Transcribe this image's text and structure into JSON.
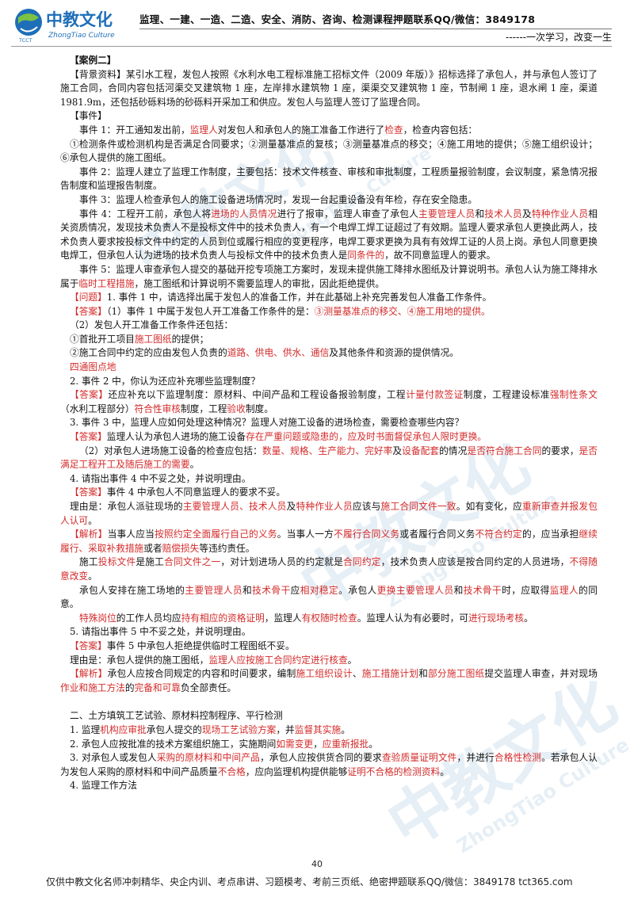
{
  "header": {
    "logo_text": "中教文化",
    "logo_sub": "ZhongTiao Culture",
    "logo_badge": "TCCT",
    "line1": "监理、一建、一造、二造、安全、消防、咨询、检测课程押题联系QQ/微信：3849178",
    "line2": "------一次学习，改变一生"
  },
  "watermarks": {
    "brand": "中教文化",
    "sub": "ZhongTiao Culture"
  },
  "body": [
    {
      "text": "【案例二】",
      "cls": "b ind"
    },
    {
      "text": "【背景资料】某引水工程，发包人按照《水利水电工程标准施工招标文件（2009 年版）》招标选择了承包人，并与承包人签订了施工合同，合同内容包括河渠交叉建筑物 1 座，左岸排水建筑物 1 座，渠渠交叉建筑物 1 座，节制闸 1 座，退水闸 1 座，渠道 1981.9m，还包括砂砾料场的砂砾料开采加工和供应。发包人与监理人签订了监理合同。",
      "cls": "ind"
    },
    {
      "text": "【事件】",
      "cls": "ind"
    },
    {
      "parts": [
        {
          "t": "事件 1：开工通知发出前，"
        },
        {
          "t": "监理人",
          "r": 1
        },
        {
          "t": "对发包人和承包人的施工准备工作进行了"
        },
        {
          "t": "检查",
          "r": 1
        },
        {
          "t": "，检查内容包括："
        }
      ],
      "cls": "ind2"
    },
    {
      "text": "①检测条件或检测机构是否满足合同要求；②测量基准点的复核；③测量基准点的移交；④施工用地的提供；⑤施工组织设计；⑥承包人提供的施工图纸。",
      "cls": "ind"
    },
    {
      "text": "事件 2：监理人建立了监理工作制度，主要包括：技术文件核查、审核和审批制度，工程质量报验制度，会议制度，紧急情况报告制度和监理报告制度。",
      "cls": "ind2"
    },
    {
      "text": "事件 3：监理人检查承包人的施工设备进场情况时，发现一台起重设备没有年检，存在安全隐患。",
      "cls": "ind2"
    },
    {
      "parts": [
        {
          "t": "事件 4：工程开工前，承包人将"
        },
        {
          "t": "进场的人员情况",
          "r": 1
        },
        {
          "t": "进行了报审，监理人审查了承包人"
        },
        {
          "t": "主要管理人员",
          "r": 1
        },
        {
          "t": "和"
        },
        {
          "t": "技术人员",
          "r": 1
        },
        {
          "t": "及"
        },
        {
          "t": "特种作业人员",
          "r": 1
        },
        {
          "t": "相关资质情况，发现技术负责人不是投标文件中的技术负责人，有一个电焊工焊工证超过了有效期。监理人要求承包人更换此两人，技术负责人要求按投标文件中约定的人员到位或履行相应的变更程序，电焊工要求更换为具有有效焊工证的人员上岗。承包人同意更换电焊工，但承包人认为进场的技术负责人与投标文件中的技术负责人是"
        },
        {
          "t": "同条件的",
          "r": 1
        },
        {
          "t": "，故不同意监理人的要求。"
        }
      ],
      "cls": "ind2"
    },
    {
      "parts": [
        {
          "t": "事件 5：监理人审查承包人提交的基础开挖专项施工方案时，发现未提供施工降排水图纸及计算说明书。承包人认为施工降排水属于"
        },
        {
          "t": "临时工程措施",
          "r": 1
        },
        {
          "t": "，施工图纸和计算说明不需要监理人的审批，因此拒绝提供。"
        }
      ],
      "cls": "ind2"
    },
    {
      "parts": [
        {
          "t": "【问题】",
          "r": 1
        },
        {
          "t": "1. 事件 1 中，请选择出属于发包人的准备工作，并在此基础上补充完善发包人准备工作条件。"
        }
      ],
      "cls": "ind"
    },
    {
      "parts": [
        {
          "t": "【答案】",
          "r": 1
        },
        {
          "t": "（1）事件 1 中属于发包人开工准备工作条件的是："
        },
        {
          "t": "③测量基准点的移交、④施工用地的提供。",
          "r": 1
        }
      ],
      "cls": "ind"
    },
    {
      "text": "（2）发包人开工准备工作条件还包括：",
      "cls": "ind"
    },
    {
      "parts": [
        {
          "t": "①首批开工项目"
        },
        {
          "t": "施工图纸",
          "r": 1
        },
        {
          "t": "的提供；"
        }
      ],
      "cls": "ind"
    },
    {
      "parts": [
        {
          "t": "②施工合同中约定的应由发包人负责的"
        },
        {
          "t": "道路、供电、供水、通信",
          "r": 1
        },
        {
          "t": "及其他条件和资源的提供情况。"
        }
      ],
      "cls": "ind"
    },
    {
      "parts": [
        {
          "t": "四通图点地",
          "r": 1
        }
      ],
      "cls": "ind"
    },
    {
      "text": "2. 事件 2 中，你认为还应补充哪些监理制度？",
      "cls": "ind"
    },
    {
      "parts": [
        {
          "t": "【答案】",
          "r": 1
        },
        {
          "t": "还应补充以下监理制度：原材料、中间产品和工程设备报验制度，工程"
        },
        {
          "t": "计量付款签证",
          "r": 1
        },
        {
          "t": "制度，工程建设标准"
        },
        {
          "t": "强制性条文",
          "r": 1
        },
        {
          "t": "（水利工程部分）"
        },
        {
          "t": "符合性审核",
          "r": 1
        },
        {
          "t": "制度，工程"
        },
        {
          "t": "验收",
          "r": 1
        },
        {
          "t": "制度。"
        }
      ],
      "cls": "ind"
    },
    {
      "text": "3. 事件 3 中，监理人应如何处理这种情况？监理人对施工设备的进场检查，需要检查哪些内容？",
      "cls": "ind"
    },
    {
      "parts": [
        {
          "t": "【答案】",
          "r": 1
        },
        {
          "t": "监理人认为承包人进场的施工设备"
        },
        {
          "t": "存在严重问题或隐患的",
          "r": 1
        },
        {
          "t": "，应及时书面督促承包人限时更换。",
          "r": 1
        }
      ],
      "cls": "ind"
    },
    {
      "parts": [
        {
          "t": "（2）对承包人进场施工设备的检查应包括："
        },
        {
          "t": "数量、规格、生产能力、完好率",
          "r": 1
        },
        {
          "t": "及"
        },
        {
          "t": "设备配套",
          "r": 1
        },
        {
          "t": "的情况"
        },
        {
          "t": "是否符合施工合同",
          "r": 1
        },
        {
          "t": "的要求，"
        },
        {
          "t": "是否满足工程开工及随后施工的需要",
          "r": 1
        },
        {
          "t": "。"
        }
      ],
      "cls": "ind2"
    },
    {
      "text": "4. 请指出事件 4 中不妥之处，并说明理由。",
      "cls": "ind"
    },
    {
      "parts": [
        {
          "t": "【答案】",
          "r": 1
        },
        {
          "t": "事件 4 中承包人不同意监理人的要求不妥。"
        }
      ],
      "cls": "ind"
    },
    {
      "parts": [
        {
          "t": "理由是：承包人派驻现场的"
        },
        {
          "t": "主要管理人员、技术人员",
          "r": 1
        },
        {
          "t": "及"
        },
        {
          "t": "特种作业人员",
          "r": 1
        },
        {
          "t": "应该与"
        },
        {
          "t": "施工合同文件一致",
          "r": 1
        },
        {
          "t": "。如有变化，应"
        },
        {
          "t": "重新审查并报发包人认可",
          "r": 1
        },
        {
          "t": "。"
        }
      ],
      "cls": "ind"
    },
    {
      "parts": [
        {
          "t": "【解析】",
          "r": 1
        },
        {
          "t": "当事人应当"
        },
        {
          "t": "按照约定全面履行自己的义务",
          "r": 1
        },
        {
          "t": "。当事人一方"
        },
        {
          "t": "不履行合同义务",
          "r": 1
        },
        {
          "t": "或者履行合同义务"
        },
        {
          "t": "不符合约定",
          "r": 1
        },
        {
          "t": "的，应当承担"
        },
        {
          "t": "继续履行、采取补救措施",
          "r": 1
        },
        {
          "t": "或者"
        },
        {
          "t": "赔偿损失",
          "r": 1
        },
        {
          "t": "等违约责任。"
        }
      ],
      "cls": "ind"
    },
    {
      "parts": [
        {
          "t": "施工"
        },
        {
          "t": "投标文件",
          "r": 1
        },
        {
          "t": "是施工"
        },
        {
          "t": "合同文件之一",
          "r": 1
        },
        {
          "t": "，对计划进场人员的约定就是"
        },
        {
          "t": "合同约定",
          "r": 1
        },
        {
          "t": "，技术负责人应该是按合同约定的人员进场，"
        },
        {
          "t": "不得随意改变",
          "r": 1
        },
        {
          "t": "。"
        }
      ],
      "cls": "ind2"
    },
    {
      "parts": [
        {
          "t": "承包人安排在施工场地的"
        },
        {
          "t": "主要管理人员",
          "r": 1
        },
        {
          "t": "和"
        },
        {
          "t": "技术骨干",
          "r": 1
        },
        {
          "t": "应"
        },
        {
          "t": "相对稳定",
          "r": 1
        },
        {
          "t": "。承包人"
        },
        {
          "t": "更换主要管理人员",
          "r": 1
        },
        {
          "t": "和"
        },
        {
          "t": "技术骨干",
          "r": 1
        },
        {
          "t": "时，应取得"
        },
        {
          "t": "监理人",
          "r": 1
        },
        {
          "t": "的同意。"
        }
      ],
      "cls": "ind2"
    },
    {
      "parts": [
        {
          "t": "特殊岗位",
          "r": 1
        },
        {
          "t": "的工作人员均应"
        },
        {
          "t": "持有相应的资格证明",
          "r": 1
        },
        {
          "t": "，监理人"
        },
        {
          "t": "有权随时检查",
          "r": 1
        },
        {
          "t": "。监理人认为有必要时，可"
        },
        {
          "t": "进行现场考核",
          "r": 1
        },
        {
          "t": "。"
        }
      ],
      "cls": "ind2"
    },
    {
      "text": "5. 请指出事件 5 中不妥之处，并说明理由。",
      "cls": "ind"
    },
    {
      "parts": [
        {
          "t": "【答案】",
          "r": 1
        },
        {
          "t": "事件 5 中承包人拒绝提供临时工程图纸不妥。"
        }
      ],
      "cls": "ind"
    },
    {
      "parts": [
        {
          "t": "理由是：承包人提供的施工图纸，"
        },
        {
          "t": "监理人应按施工合同约定进行核查",
          "r": 1
        },
        {
          "t": "。"
        }
      ],
      "cls": "ind"
    },
    {
      "parts": [
        {
          "t": "【解析】",
          "r": 1
        },
        {
          "t": "承包人应按合同规定的内容和时间要求，编制"
        },
        {
          "t": "施工组织设计",
          "r": 1
        },
        {
          "t": "、"
        },
        {
          "t": "施工措施计划",
          "r": 1
        },
        {
          "t": "和"
        },
        {
          "t": "部分施工图纸",
          "r": 1
        },
        {
          "t": "提交监理人审查，并对现场"
        },
        {
          "t": "作业和施工方法",
          "r": 1
        },
        {
          "t": "的"
        },
        {
          "t": "完备和可靠",
          "r": 1
        },
        {
          "t": "负全部责任。"
        }
      ],
      "cls": "ind"
    },
    {
      "gap": 2
    },
    {
      "text": "二、土方填筑工艺试验、原材料控制程序、平行检测",
      "cls": "ind"
    },
    {
      "parts": [
        {
          "t": "1. 监理"
        },
        {
          "t": "机构应审批",
          "r": 1
        },
        {
          "t": "承包人提交的"
        },
        {
          "t": "现场工艺试验方案",
          "r": 1
        },
        {
          "t": "，并"
        },
        {
          "t": "监督其实施",
          "r": 1
        },
        {
          "t": "。"
        }
      ],
      "cls": "ind"
    },
    {
      "parts": [
        {
          "t": "2. 承包人应按批准的技术方案组织施工，实施期间"
        },
        {
          "t": "如需变更",
          "r": 1
        },
        {
          "t": "，"
        },
        {
          "t": "应重新报批",
          "r": 1
        },
        {
          "t": "。"
        }
      ],
      "cls": "ind"
    },
    {
      "parts": [
        {
          "t": "3. 对承包人或发包人"
        },
        {
          "t": "采购的原材料和中间产品",
          "r": 1
        },
        {
          "t": "，承包人应按供货合同的要求"
        },
        {
          "t": "查验质量证明文件",
          "r": 1
        },
        {
          "t": "，并进行"
        },
        {
          "t": "合格性检测",
          "r": 1
        },
        {
          "t": "。若承包人认为发包人采购的原材料和中间产品质量"
        },
        {
          "t": "不合格",
          "r": 1
        },
        {
          "t": "，应向监理机构提供能够"
        },
        {
          "t": "证明不合格的检测资料",
          "r": 1
        },
        {
          "t": "。"
        }
      ],
      "cls": "ind"
    },
    {
      "text": "4. 监理工作方法",
      "cls": "ind"
    }
  ],
  "page_number": "40",
  "footer": "仅供中教文化名师冲刺精华、央企内训、考点串讲、习题模考、考前三页纸、绝密押题联系QQ/微信：3849178 tct365.com"
}
